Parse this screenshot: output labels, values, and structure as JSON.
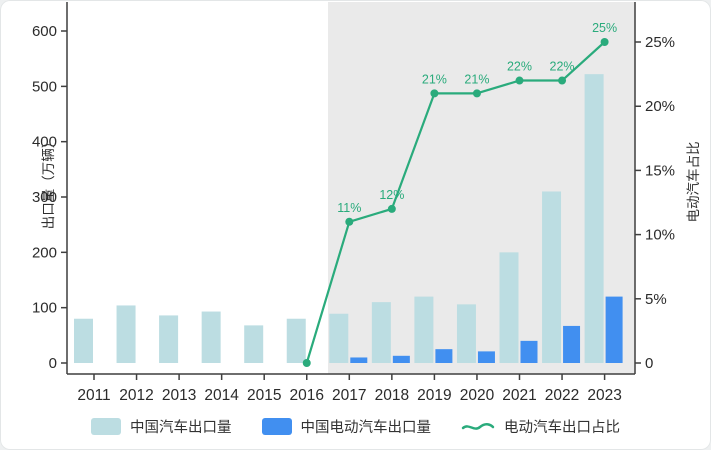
{
  "chart_data": {
    "type": "bar",
    "title": "",
    "categories": [
      "2011",
      "2012",
      "2013",
      "2014",
      "2015",
      "2016",
      "2017",
      "2018",
      "2019",
      "2020",
      "2021",
      "2022",
      "2023"
    ],
    "series": [
      {
        "name": "中国汽车出口量",
        "type": "bar",
        "axis": "left",
        "color": "#bcdde2",
        "values": [
          80,
          104,
          86,
          93,
          68,
          80,
          89,
          110,
          120,
          106,
          200,
          310,
          522
        ]
      },
      {
        "name": "中国电动汽车出口量",
        "type": "bar",
        "axis": "left",
        "color": "#418ff0",
        "values": [
          null,
          null,
          null,
          null,
          null,
          null,
          10,
          13,
          25,
          21,
          40,
          67,
          120
        ]
      },
      {
        "name": "电动汽车出口占比",
        "type": "line",
        "axis": "right",
        "color": "#2aab7c",
        "values": [
          null,
          null,
          null,
          null,
          null,
          0,
          11,
          12,
          21,
          21,
          22,
          22,
          25
        ],
        "point_labels": [
          null,
          null,
          null,
          null,
          null,
          null,
          "11%",
          "12%",
          "21%",
          "21%",
          "22%",
          "22%",
          "25%"
        ]
      }
    ],
    "ylabel_left": "出口量（万辆）",
    "ylabel_right": "电动汽车占比",
    "ylim_left": [
      0,
      600
    ],
    "ylim_right_pct": [
      0,
      25
    ],
    "yticks_left": [
      "0",
      "100",
      "200",
      "300",
      "400",
      "500",
      "600"
    ],
    "yticks_right": [
      "0",
      "5%",
      "10%",
      "15%",
      "20%",
      "25%"
    ],
    "xtick_labels": [
      "2011",
      "2012",
      "2013",
      "2014",
      "2015",
      "2016",
      "2017",
      "2018",
      "2019",
      "2020",
      "2021",
      "2022",
      "2023"
    ],
    "grid": false,
    "legend_position": "bottom",
    "highlight_band": {
      "from_after_category": "2016",
      "to_category": "2023",
      "color": "#eaeaea"
    },
    "axis_color": "#3f3f3f",
    "tick_label_color": "#2b2b2b"
  }
}
